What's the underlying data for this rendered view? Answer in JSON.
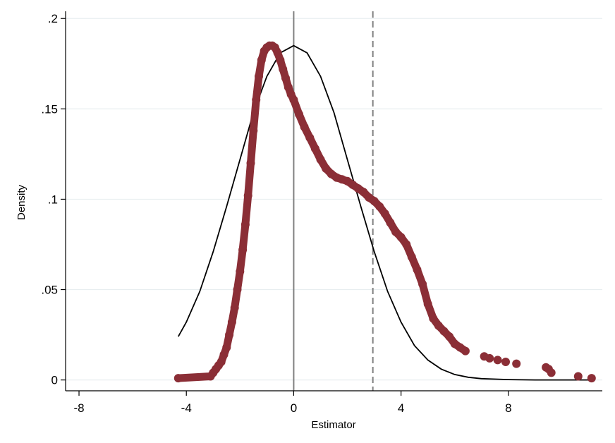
{
  "chart_data": {
    "type": "scatter",
    "xlabel": "Estimator",
    "ylabel": "Density",
    "xlim": [
      -8.5,
      11.5
    ],
    "ylim": [
      -0.006,
      0.204
    ],
    "x_ticks": [
      {
        "value": -8,
        "label": "-8"
      },
      {
        "value": -4,
        "label": "-4"
      },
      {
        "value": 0,
        "label": "0"
      },
      {
        "value": 4,
        "label": "4"
      },
      {
        "value": 8,
        "label": "8"
      }
    ],
    "y_ticks": [
      {
        "value": 0,
        "label": "0"
      },
      {
        "value": 0.05,
        "label": ".05"
      },
      {
        "value": 0.1,
        "label": ".1"
      },
      {
        "value": 0.15,
        "label": ".15"
      },
      {
        "value": 0.2,
        "label": ".2"
      }
    ],
    "grid": "horizontal",
    "reference_lines": [
      {
        "x": 0,
        "style": "solid",
        "color": "#808080"
      },
      {
        "x": 2.95,
        "style": "dashed",
        "color": "#808080"
      }
    ],
    "series": [
      {
        "kind": "scatter",
        "color": "#8b2e36",
        "x": [
          -4.3,
          -3.1,
          -3.0,
          -2.9,
          -2.8,
          -2.7,
          -2.6,
          -2.5,
          -2.4,
          -2.3,
          -2.2,
          -2.1,
          -2.0,
          -1.9,
          -1.8,
          -1.7,
          -1.6,
          -1.5,
          -1.4,
          -1.3,
          -1.2,
          -1.1,
          -1.0,
          -0.9,
          -0.8,
          -0.7,
          -0.6,
          -0.5,
          -0.4,
          -0.3,
          -0.2,
          -0.1,
          0.0,
          0.2,
          0.4,
          0.6,
          0.8,
          1.0,
          1.2,
          1.4,
          1.6,
          1.8,
          2.0,
          2.2,
          2.4,
          2.6,
          2.8,
          3.0,
          3.2,
          3.4,
          3.6,
          3.8,
          4.0,
          4.2,
          4.4,
          4.6,
          4.8,
          5.0,
          5.2,
          5.4,
          5.6,
          5.8,
          6.0,
          6.2,
          6.4,
          7.1,
          7.3,
          7.6,
          7.9,
          8.3,
          9.4,
          9.5,
          9.6,
          10.6,
          11.1
        ],
        "y": [
          0.001,
          0.002,
          0.004,
          0.006,
          0.008,
          0.01,
          0.014,
          0.018,
          0.025,
          0.032,
          0.04,
          0.05,
          0.06,
          0.072,
          0.086,
          0.102,
          0.12,
          0.138,
          0.155,
          0.168,
          0.177,
          0.182,
          0.184,
          0.185,
          0.185,
          0.184,
          0.181,
          0.177,
          0.172,
          0.167,
          0.162,
          0.158,
          0.155,
          0.147,
          0.14,
          0.134,
          0.128,
          0.122,
          0.117,
          0.114,
          0.112,
          0.111,
          0.11,
          0.108,
          0.106,
          0.104,
          0.101,
          0.099,
          0.096,
          0.092,
          0.087,
          0.082,
          0.079,
          0.075,
          0.068,
          0.061,
          0.053,
          0.042,
          0.034,
          0.03,
          0.027,
          0.024,
          0.02,
          0.018,
          0.016,
          0.013,
          0.012,
          0.011,
          0.01,
          0.009,
          0.007,
          0.006,
          0.004,
          0.002,
          0.001
        ]
      },
      {
        "kind": "line",
        "color": "#000000",
        "x": [
          -4.3,
          -4.0,
          -3.5,
          -3.0,
          -2.5,
          -2.0,
          -1.5,
          -1.0,
          -0.5,
          0.0,
          0.5,
          1.0,
          1.5,
          2.0,
          2.5,
          3.0,
          3.5,
          4.0,
          4.5,
          5.0,
          5.5,
          6.0,
          6.5,
          7.0,
          8.0,
          9.0,
          10.0,
          11.1
        ],
        "y": [
          0.024,
          0.032,
          0.049,
          0.071,
          0.096,
          0.122,
          0.148,
          0.168,
          0.181,
          0.185,
          0.181,
          0.168,
          0.148,
          0.122,
          0.096,
          0.071,
          0.049,
          0.032,
          0.019,
          0.011,
          0.006,
          0.003,
          0.0015,
          0.0007,
          0.0002,
          0.0,
          0.0,
          0.0
        ]
      }
    ]
  }
}
